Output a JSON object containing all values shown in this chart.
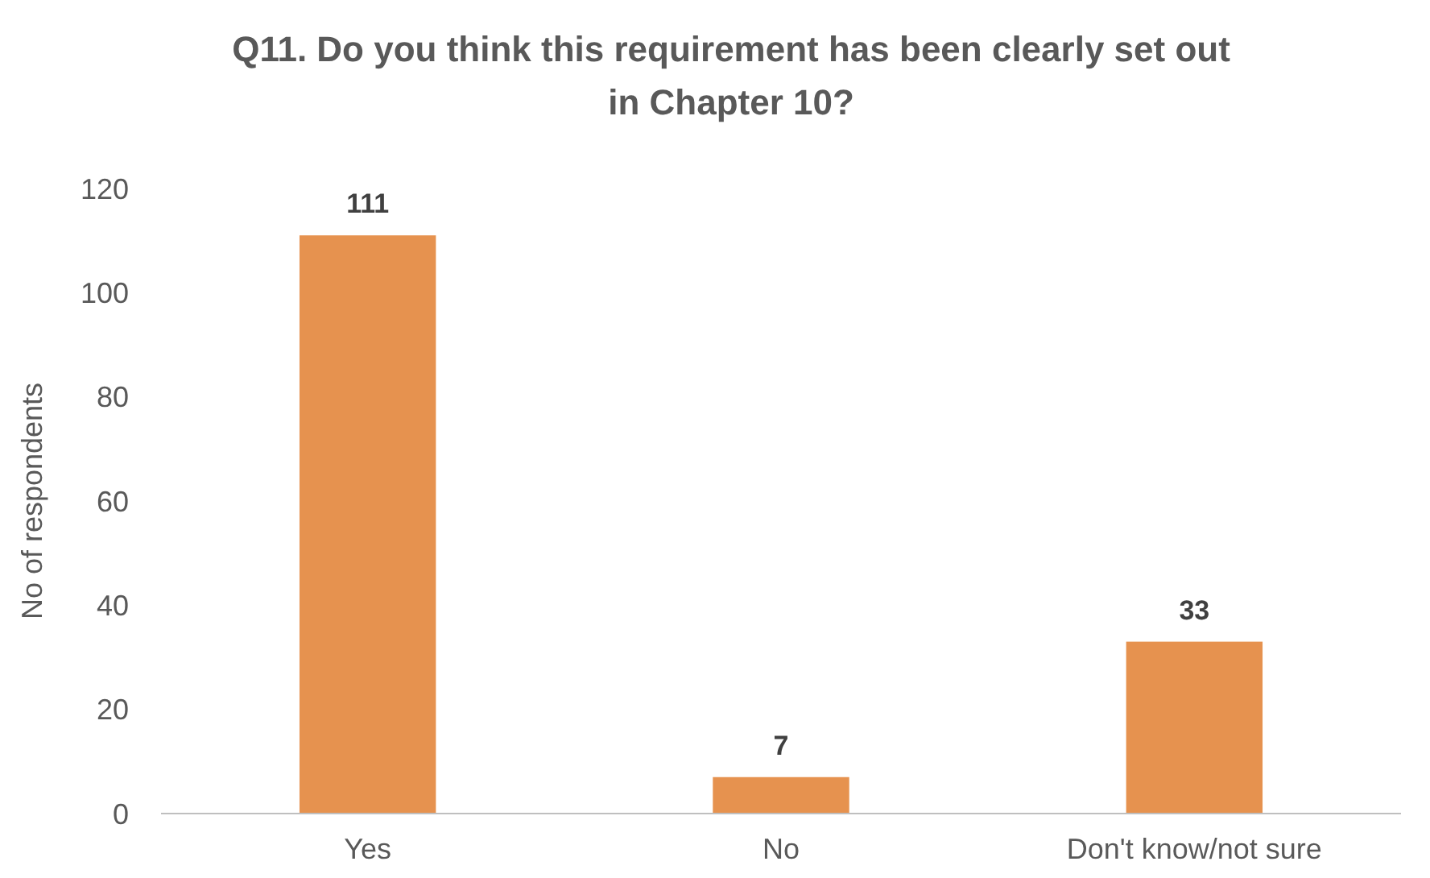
{
  "chart_data": {
    "type": "bar",
    "title": "Q11. Do you think this requirement has been clearly set out in Chapter 10?",
    "ylabel": "No of respondents",
    "categories": [
      "Yes",
      "No",
      "Don't know/not sure"
    ],
    "values": [
      111,
      7,
      33
    ],
    "color": "#e6924f",
    "ylim": [
      0,
      120
    ],
    "yticks": [
      0,
      20,
      40,
      60,
      80,
      100,
      120
    ],
    "grid": false,
    "data_labels": true
  }
}
